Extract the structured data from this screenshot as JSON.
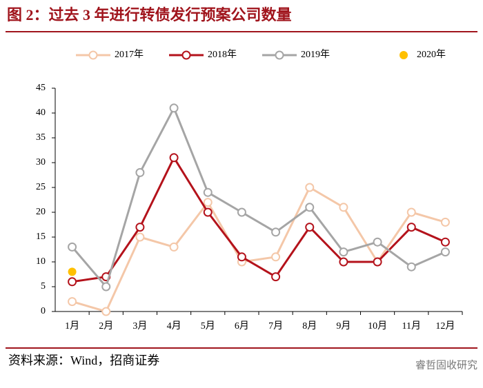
{
  "chart_data": {
    "type": "line",
    "title": "图 2：过去 3 年进行转债发行预案公司数量",
    "source": "资料来源：Wind，招商证券",
    "watermark": "睿哲固收研究",
    "categories": [
      "1月",
      "2月",
      "3月",
      "4月",
      "5月",
      "6月",
      "7月",
      "8月",
      "9月",
      "10月",
      "11月",
      "12月"
    ],
    "series": [
      {
        "name": "2017年",
        "color": "#f4c7a8",
        "values": [
          2,
          0,
          15,
          13,
          22,
          10,
          11,
          25,
          21,
          10,
          20,
          18
        ]
      },
      {
        "name": "2018年",
        "color": "#b4121b",
        "values": [
          6,
          7,
          17,
          31,
          20,
          11,
          7,
          17,
          10,
          10,
          17,
          14
        ]
      },
      {
        "name": "2019年",
        "color": "#a5a5a5",
        "values": [
          13,
          5,
          28,
          41,
          24,
          20,
          16,
          21,
          12,
          14,
          9,
          12
        ]
      },
      {
        "name": "2020年",
        "color": "#ffc000",
        "filled": true,
        "values": [
          8,
          null,
          null,
          null,
          null,
          null,
          null,
          null,
          null,
          null,
          null,
          null
        ]
      }
    ],
    "ylim": [
      0,
      45
    ],
    "yticks": [
      0,
      5,
      10,
      15,
      20,
      25,
      30,
      35,
      40,
      45
    ],
    "legend": "top"
  }
}
